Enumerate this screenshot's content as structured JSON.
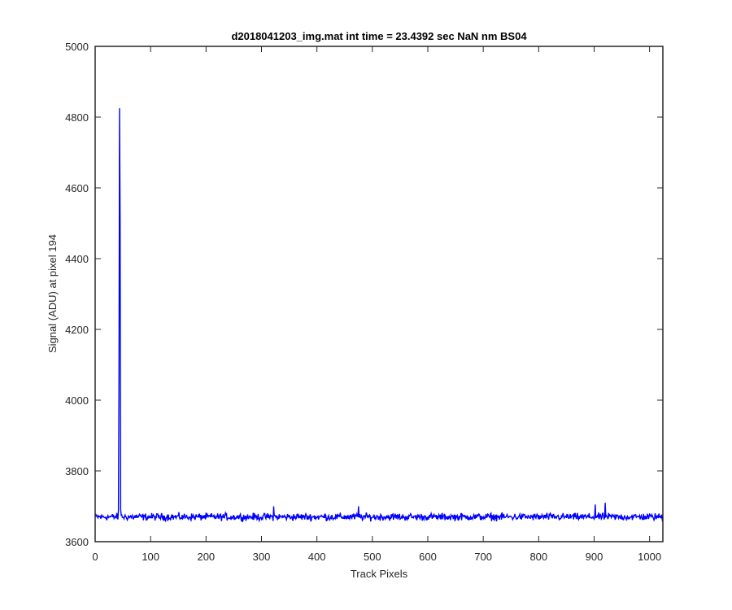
{
  "chart_data": {
    "type": "line",
    "title": "d2018041203_img.mat int time = 23.4392 sec  NaN nm BS04",
    "xlabel": "Track Pixels",
    "ylabel": "Signal (ADU) at pixel 194",
    "xlim": [
      0,
      1024
    ],
    "ylim": [
      3600,
      5000
    ],
    "xticks": [
      0,
      100,
      200,
      300,
      400,
      500,
      600,
      700,
      800,
      900,
      1000
    ],
    "yticks": [
      3600,
      3800,
      4000,
      4200,
      4400,
      4600,
      4800,
      5000
    ],
    "grid": false,
    "series": [
      {
        "color": "#0000ff",
        "baseline": 3670,
        "noise_amplitude": 12,
        "peaks": [
          {
            "x": 42,
            "y": 3690
          },
          {
            "x": 43,
            "y": 4075
          },
          {
            "x": 44,
            "y": 4825
          },
          {
            "x": 45,
            "y": 4510
          },
          {
            "x": 46,
            "y": 3690
          },
          {
            "x": 322,
            "y": 3700
          },
          {
            "x": 475,
            "y": 3700
          },
          {
            "x": 902,
            "y": 3705
          },
          {
            "x": 920,
            "y": 3710
          }
        ]
      }
    ]
  }
}
